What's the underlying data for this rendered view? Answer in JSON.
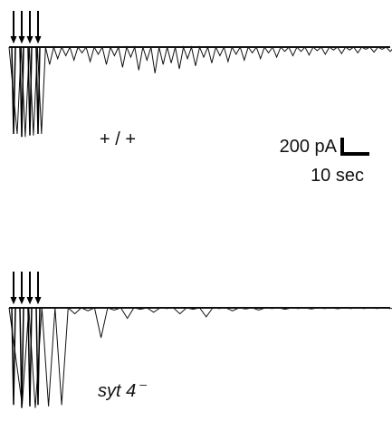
{
  "chart_data": [
    {
      "type": "line",
      "title": "",
      "genotype_label": "+ / +",
      "stimulus_count": 4,
      "scalebar": {
        "y_label": "200 pA",
        "x_label": "10 sec"
      },
      "series": [
        {
          "values": [
            0,
            -600,
            -620,
            -610,
            -600,
            -120,
            -80,
            -60,
            -90,
            -40,
            -100,
            -50,
            -120,
            -60,
            -140,
            -70,
            -160,
            -90,
            -180,
            -120,
            -110,
            -150,
            -80,
            -130,
            -70,
            -110,
            -60,
            -100,
            -50,
            -90,
            -40,
            -80,
            -40,
            -70,
            -30,
            -60,
            -30,
            -55,
            -25,
            -50,
            -20,
            -45,
            -20,
            -40,
            -15,
            -35,
            -15,
            -30
          ]
        }
      ]
    },
    {
      "type": "line",
      "title": "",
      "genotype_label": "syt 4",
      "genotype_superscript": "–",
      "stimulus_count": 4,
      "series": [
        {
          "values": [
            0,
            -650,
            -670,
            -660,
            -650,
            -40,
            -20,
            -200,
            -15,
            -70,
            -10,
            -30,
            -5,
            -40,
            -10,
            -60,
            -5,
            -20,
            -8,
            -15,
            -5,
            -10,
            -5,
            -8,
            -5,
            -6,
            -4,
            -5,
            -4,
            -4
          ]
        }
      ]
    }
  ]
}
